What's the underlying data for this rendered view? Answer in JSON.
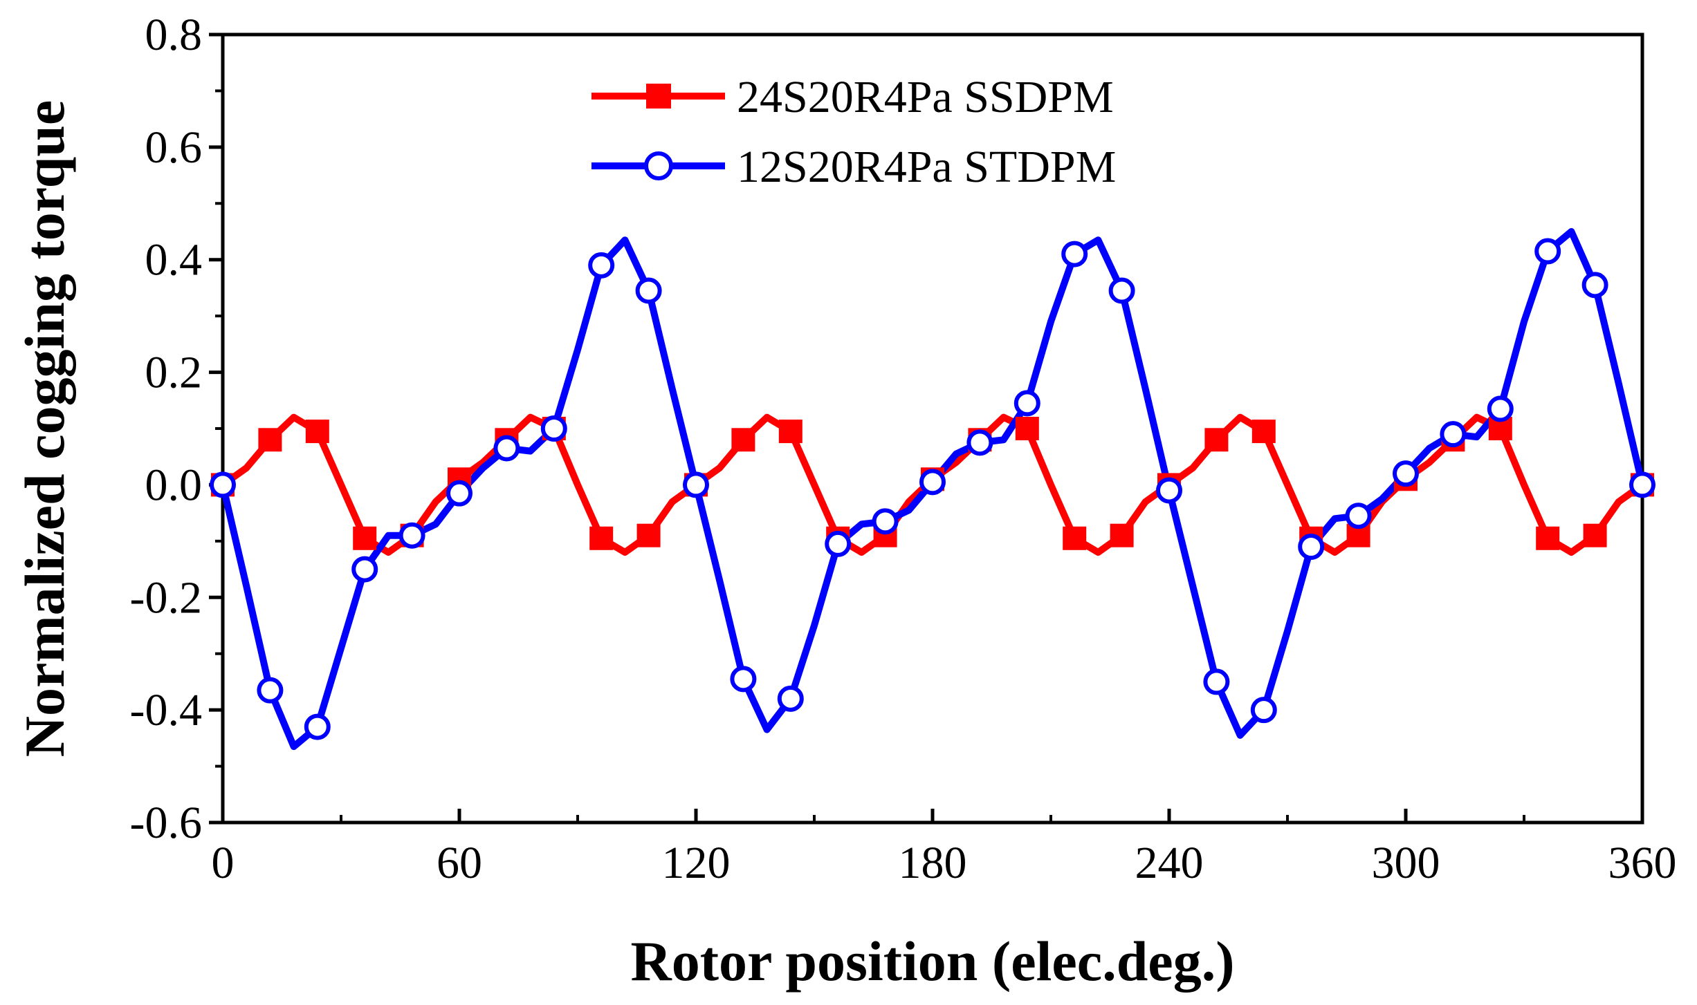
{
  "chart_data": {
    "type": "line",
    "title": "",
    "xlabel": "Rotor position (elec.deg.)",
    "ylabel": "Normalized cogging torque",
    "xlim": [
      0,
      360
    ],
    "ylim": [
      -0.6,
      0.8
    ],
    "xticks": [
      0,
      60,
      120,
      180,
      240,
      300,
      360
    ],
    "xtick_labels": [
      "0",
      "60",
      "120",
      "180",
      "240",
      "300",
      "360"
    ],
    "yticks": [
      -0.6,
      -0.4,
      -0.2,
      0.0,
      0.2,
      0.4,
      0.6,
      0.8
    ],
    "ytick_labels": [
      "-0.6",
      "-0.4",
      "-0.2",
      "0.0",
      "0.2",
      "0.4",
      "0.6",
      "0.8"
    ],
    "grid": false,
    "legend_position": "top-center",
    "series": [
      {
        "name": "24S20R4Pa SSDPM",
        "color": "#ff0000",
        "marker": "square-filled",
        "x": [
          0,
          6,
          12,
          18,
          24,
          30,
          36,
          42,
          48,
          54,
          60,
          66,
          72,
          78,
          84,
          90,
          96,
          102,
          108,
          114,
          120,
          126,
          132,
          138,
          144,
          150,
          156,
          162,
          168,
          174,
          180,
          186,
          192,
          198,
          204,
          210,
          216,
          222,
          228,
          234,
          240,
          246,
          252,
          258,
          264,
          270,
          276,
          282,
          288,
          294,
          300,
          306,
          312,
          318,
          324,
          330,
          336,
          342,
          348,
          354,
          360
        ],
        "y": [
          0.0,
          0.03,
          0.08,
          0.12,
          0.095,
          0.0,
          -0.095,
          -0.12,
          -0.09,
          -0.03,
          0.01,
          0.04,
          0.08,
          0.12,
          0.1,
          0.0,
          -0.095,
          -0.12,
          -0.09,
          -0.03,
          0.0,
          0.03,
          0.08,
          0.12,
          0.095,
          0.0,
          -0.095,
          -0.12,
          -0.09,
          -0.03,
          0.01,
          0.04,
          0.08,
          0.12,
          0.1,
          0.0,
          -0.095,
          -0.12,
          -0.09,
          -0.03,
          0.0,
          0.03,
          0.08,
          0.12,
          0.095,
          0.0,
          -0.095,
          -0.12,
          -0.09,
          -0.03,
          0.01,
          0.04,
          0.08,
          0.12,
          0.1,
          0.0,
          -0.095,
          -0.12,
          -0.09,
          -0.03,
          0.0
        ],
        "marker_x": [
          0,
          12,
          24,
          36,
          48,
          60,
          72,
          84,
          96,
          108,
          120,
          132,
          144,
          156,
          168,
          180,
          192,
          204,
          216,
          228,
          240,
          252,
          264,
          276,
          288,
          300,
          312,
          324,
          336,
          348,
          360
        ],
        "marker_y": [
          0.0,
          0.08,
          0.095,
          -0.095,
          -0.09,
          0.01,
          0.08,
          0.1,
          -0.095,
          -0.09,
          0.0,
          0.08,
          0.095,
          -0.095,
          -0.09,
          0.01,
          0.08,
          0.1,
          -0.095,
          -0.09,
          0.0,
          0.08,
          0.095,
          -0.095,
          -0.09,
          0.01,
          0.08,
          0.1,
          -0.095,
          -0.09,
          0.0
        ]
      },
      {
        "name": "12S20R4Pa STDPM",
        "color": "#0000ff",
        "marker": "circle-open",
        "x": [
          0,
          6,
          12,
          18,
          24,
          30,
          36,
          42,
          48,
          54,
          60,
          66,
          72,
          78,
          84,
          90,
          96,
          102,
          108,
          114,
          120,
          126,
          132,
          138,
          144,
          150,
          156,
          162,
          168,
          174,
          180,
          186,
          192,
          198,
          204,
          210,
          216,
          222,
          228,
          234,
          240,
          246,
          252,
          258,
          264,
          270,
          276,
          282,
          288,
          294,
          300,
          306,
          312,
          318,
          324,
          330,
          336,
          342,
          348,
          354,
          360
        ],
        "y": [
          0.0,
          -0.18,
          -0.365,
          -0.465,
          -0.43,
          -0.29,
          -0.15,
          -0.09,
          -0.09,
          -0.07,
          -0.015,
          0.03,
          0.065,
          0.06,
          0.1,
          0.24,
          0.39,
          0.435,
          0.345,
          0.17,
          0.0,
          -0.17,
          -0.345,
          -0.435,
          -0.38,
          -0.25,
          -0.105,
          -0.07,
          -0.065,
          -0.045,
          0.005,
          0.055,
          0.075,
          0.08,
          0.145,
          0.29,
          0.41,
          0.435,
          0.345,
          0.17,
          -0.01,
          -0.18,
          -0.35,
          -0.445,
          -0.4,
          -0.26,
          -0.11,
          -0.06,
          -0.055,
          -0.025,
          0.02,
          0.065,
          0.09,
          0.085,
          0.135,
          0.29,
          0.415,
          0.45,
          0.355,
          0.18,
          0.0
        ],
        "marker_x": [
          0,
          12,
          24,
          36,
          48,
          60,
          72,
          84,
          96,
          108,
          120,
          132,
          144,
          156,
          168,
          180,
          192,
          204,
          216,
          228,
          240,
          252,
          264,
          276,
          288,
          300,
          312,
          324,
          336,
          348,
          360
        ],
        "marker_y": [
          0.0,
          -0.365,
          -0.43,
          -0.15,
          -0.09,
          -0.015,
          0.065,
          0.1,
          0.39,
          0.345,
          0.0,
          -0.345,
          -0.38,
          -0.105,
          -0.065,
          0.005,
          0.075,
          0.145,
          0.41,
          0.345,
          -0.01,
          -0.35,
          -0.4,
          -0.11,
          -0.055,
          0.02,
          0.09,
          0.135,
          0.415,
          0.355,
          0.0
        ]
      }
    ]
  }
}
